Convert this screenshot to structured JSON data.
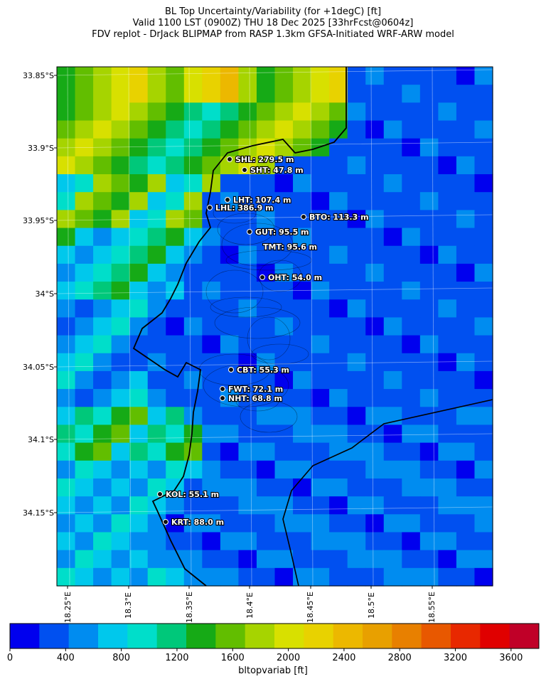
{
  "title": {
    "line1": "BL Top Uncertainty/Variability (for +1degC) [ft]",
    "line2": "Valid 1100 LST (0900Z) THU 18 Dec 2025 [33hrFcst@0604z]",
    "line3": "FDV replot - DrJack BLIPMAP from RASP 1.3km GFSA-Initiated WRF-ARW model"
  },
  "map": {
    "lat_range": [
      -34.205,
      -33.845
    ],
    "lon_range": [
      18.21,
      18.56
    ],
    "lat_ticks": [
      "33.85°S",
      "33.9°S",
      "33.95°S",
      "34°S",
      "34.05°S",
      "34.1°S",
      "34.15°S"
    ],
    "lon_ticks": [
      "18.25°E",
      "18.3°E",
      "18.35°E",
      "18.4°E",
      "18.45°E",
      "18.5°E",
      "18.55°E"
    ],
    "grid": true,
    "stations": [
      {
        "label": "SHL: 279.5 m",
        "value_m": 279.5
      },
      {
        "label": "SHT: 47.8 m",
        "value_m": 47.8
      },
      {
        "label": "LHT: 107.4 m",
        "value_m": 107.4
      },
      {
        "label": "LHL: 386.9 m",
        "value_m": 386.9
      },
      {
        "label": "BTO: 113.3 m",
        "value_m": 113.3
      },
      {
        "label": "GUT: 95.5 m",
        "value_m": 95.5
      },
      {
        "label": "TMT: 95.6 m",
        "value_m": 95.6
      },
      {
        "label": "OHT: 54.0 m",
        "value_m": 54.0
      },
      {
        "label": "CBT: 55.3 m",
        "value_m": 55.3
      },
      {
        "label": "FWT: 72.1 m",
        "value_m": 72.1
      },
      {
        "label": "NHT: 68.8 m",
        "value_m": 68.8
      },
      {
        "label": "KOL: 55.1 m",
        "value_m": 55.1
      },
      {
        "label": "KRT: 88.0 m",
        "value_m": 88.0
      }
    ]
  },
  "colorbar": {
    "label": "bltopvariab [ft]",
    "min": 0,
    "max": 3800,
    "step": 200,
    "ticks": [
      "0",
      "400",
      "800",
      "1200",
      "1600",
      "2000",
      "2400",
      "2800",
      "3200",
      "3600"
    ],
    "colors": [
      "#0000ee",
      "#0050f0",
      "#008cf0",
      "#00c8ec",
      "#00deca",
      "#00c87a",
      "#16aa16",
      "#62be00",
      "#a6d400",
      "#d8e000",
      "#e8d200",
      "#ecb800",
      "#e8a000",
      "#e88000",
      "#e85800",
      "#e82800",
      "#e00000",
      "#c00028"
    ]
  }
}
